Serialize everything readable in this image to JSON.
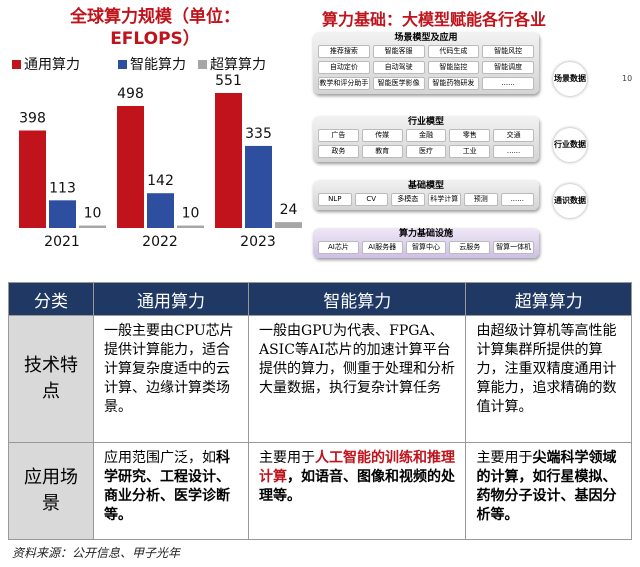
{
  "chart_data": {
    "type": "bar",
    "title": "全球算力规模（单位：EFLOPS）",
    "categories": [
      "2021",
      "2022",
      "2023"
    ],
    "series": [
      {
        "name": "通用算力",
        "color": "#c0131b",
        "values": [
          398,
          498,
          551
        ]
      },
      {
        "name": "智能算力",
        "color": "#2e4fa0",
        "values": [
          113,
          142,
          335
        ]
      },
      {
        "name": "超算算力",
        "color": "#a6a6a6",
        "values": [
          10,
          10,
          24
        ]
      }
    ],
    "legend": "top"
  },
  "diagram": {
    "title": "算力基础：大模型赋能各行各业",
    "page_number": "10",
    "layers": [
      {
        "title": "场景模型及应用",
        "items": [
          "推荐搜索",
          "智能客服",
          "代码生成",
          "智能风控",
          "自动定价",
          "自动驾驶",
          "智能监控",
          "智能调度",
          "教学和评分助手",
          "智能医学影像",
          "智能药物研发",
          "......"
        ],
        "side_label": "场景数据"
      },
      {
        "title": "行业模型",
        "items": [
          "广告",
          "传媒",
          "金融",
          "零售",
          "交通",
          "政务",
          "教育",
          "医疗",
          "工业",
          "......"
        ],
        "side_label": "行业数据"
      },
      {
        "title": "基础模型",
        "items": [
          "NLP",
          "CV",
          "多模态",
          "科学计算",
          "预测",
          "......"
        ],
        "side_label": "通识数据"
      },
      {
        "title": "算力基础设施",
        "items": [
          "AI芯片",
          "AI服务器",
          "智算中心",
          "云服务",
          "智算一体机"
        ]
      }
    ]
  },
  "table": {
    "header": [
      "分类",
      "通用算力",
      "智能算力",
      "超算算力"
    ],
    "rows": [
      {
        "label": "技术特点",
        "cells": [
          [
            {
              "text": "一般主要由CPU芯片提供计算能力，适合计算复杂度适中的云计算、边缘计算类场景。",
              "style": "normal"
            }
          ],
          [
            {
              "text": "一般由GPU为代表、FPGA、ASIC等AI芯片的加速计算平台提供的算力，侧重于处理和分析大量数据，执行复杂计算任务",
              "style": "normal"
            }
          ],
          [
            {
              "text": "由超级计算机等高性能计算集群所提供的算力，注重双精度通用计算能力，追求精确的数值计算。",
              "style": "normal"
            }
          ]
        ]
      },
      {
        "label": "应用场景",
        "cells": [
          [
            {
              "text": "应用范围广泛，如",
              "style": "normal"
            },
            {
              "text": "科学研究、工程设计、商业分析、医学诊断等。",
              "style": "bold"
            }
          ],
          [
            {
              "text": "主要用于",
              "style": "normal"
            },
            {
              "text": "人工智能的训练和推理计算",
              "style": "red-bold"
            },
            {
              "text": "，如语音、图像和视频的处理等。",
              "style": "bold"
            }
          ],
          [
            {
              "text": "主要用于",
              "style": "normal"
            },
            {
              "text": "尖端科学领域的计算，如行星模拟、药物分子设计、基因分析等。",
              "style": "bold"
            }
          ]
        ]
      }
    ]
  },
  "source": "资料来源：公开信息、甲子光年"
}
